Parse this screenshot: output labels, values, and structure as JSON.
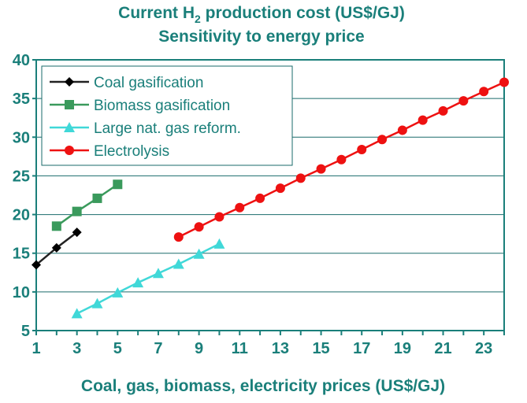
{
  "chart_data": {
    "type": "line",
    "title": "Current H",
    "title_subscript": "2",
    "title_rest": " production cost (US$/GJ)",
    "subtitle": "Sensitivity to energy price",
    "xlabel": "Coal, gas, biomass, electricity prices (US$/GJ)",
    "ylabel": "",
    "xlim": [
      1,
      24
    ],
    "ylim": [
      5,
      40
    ],
    "xticks": [
      1,
      3,
      5,
      7,
      9,
      11,
      13,
      15,
      17,
      19,
      21,
      23
    ],
    "yticks": [
      5,
      10,
      15,
      20,
      25,
      30,
      35,
      40
    ],
    "grid": "horizontal",
    "legend_position": "top-left",
    "colors": {
      "text": "#1a7f7a",
      "grid": "#1a6b6b",
      "frame": "#1a7f7a"
    },
    "series": [
      {
        "name": "Coal gasification",
        "color": "#000000",
        "line_color": "#222222",
        "marker": "diamond",
        "x": [
          1,
          2,
          3
        ],
        "y": [
          13.5,
          15.7,
          17.7
        ]
      },
      {
        "name": "Biomass gasification",
        "color": "#3a9a5c",
        "line_color": "#3a9a5c",
        "marker": "square",
        "x": [
          2,
          3,
          4,
          5
        ],
        "y": [
          18.5,
          20.4,
          22.1,
          23.9
        ]
      },
      {
        "name": "Large nat. gas reform.",
        "color": "#40d8d8",
        "line_color": "#40d8d8",
        "marker": "triangle",
        "x": [
          3,
          4,
          5,
          6,
          7,
          8,
          9,
          10
        ],
        "y": [
          7.2,
          8.5,
          9.9,
          11.2,
          12.4,
          13.6,
          14.9,
          16.2
        ]
      },
      {
        "name": "Electrolysis",
        "color": "#ee1111",
        "line_color": "#ee1111",
        "marker": "circle",
        "x": [
          8,
          9,
          10,
          11,
          12,
          13,
          14,
          15,
          16,
          17,
          18,
          19,
          20,
          21,
          22,
          23,
          24
        ],
        "y": [
          17.1,
          18.4,
          19.7,
          20.9,
          22.1,
          23.4,
          24.7,
          25.9,
          27.1,
          28.4,
          29.7,
          30.9,
          32.2,
          33.4,
          34.7,
          35.9,
          37.1
        ]
      }
    ]
  }
}
